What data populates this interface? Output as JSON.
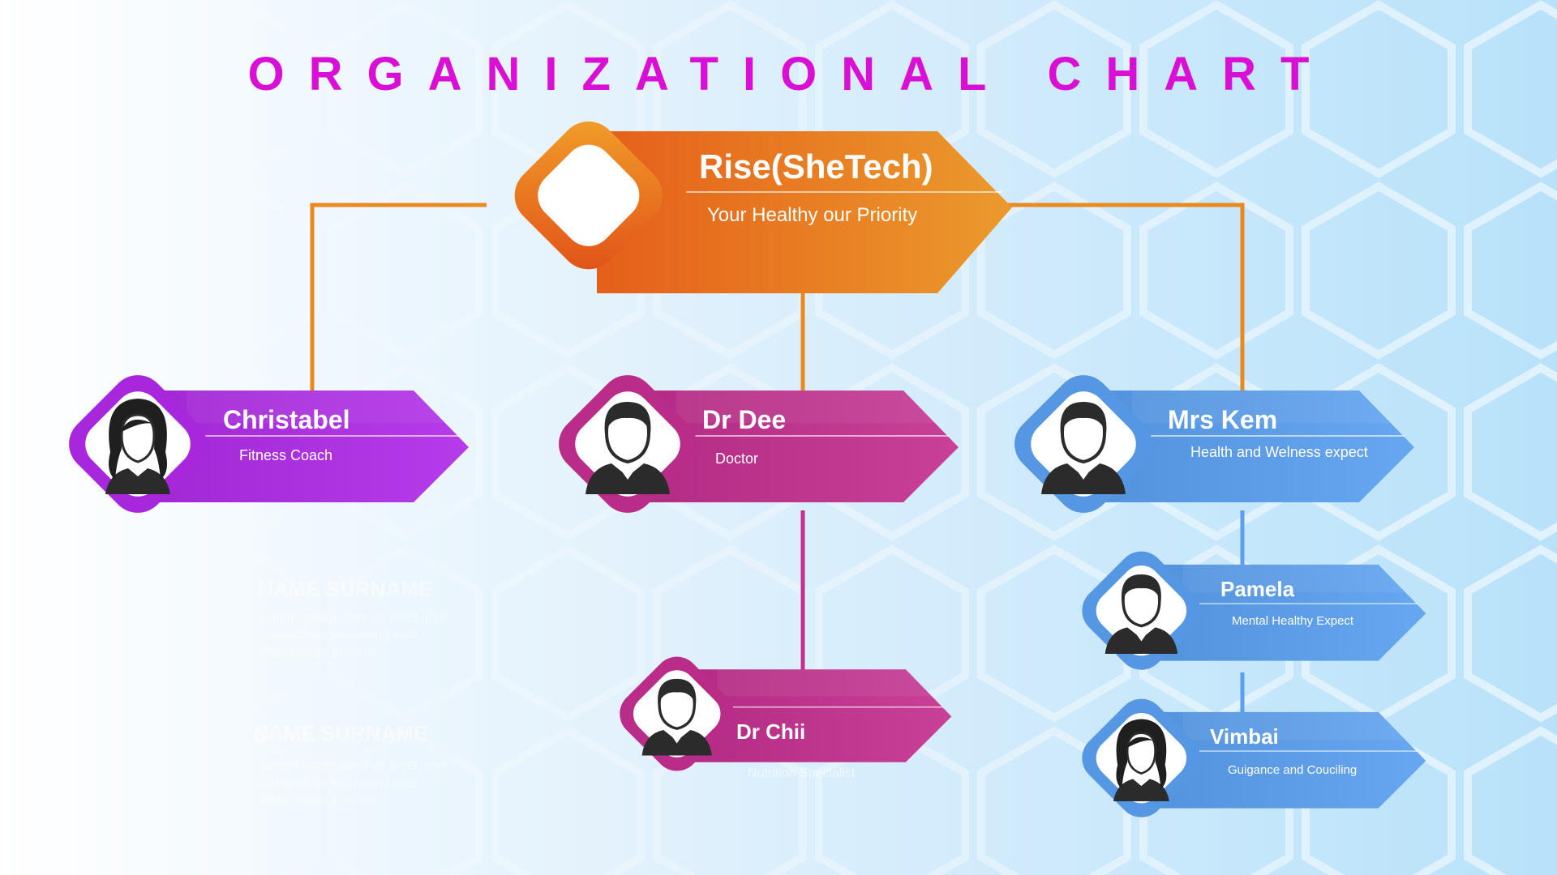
{
  "title": "ORGANIZATIONAL CHART",
  "root": {
    "name": "Rise(SheTech)",
    "tagline": "Your Healthy our Priority"
  },
  "members": [
    {
      "name": "Christabel",
      "role": "Fitness Coach",
      "avatar": "female-avatar-icon",
      "color": "#b02ae8"
    },
    {
      "name": "Dr Dee",
      "role": "Doctor",
      "avatar": "male-avatar-icon",
      "color": "#c32f8f"
    },
    {
      "name": "Mrs Kem",
      "role": "Health and Welness expect",
      "avatar": "male-avatar-icon",
      "color": "#5a9ff0"
    },
    {
      "name": "Pamela",
      "role": "Mental  Healthy Expect",
      "avatar": "male-avatar-icon",
      "color": "#5a9ff0"
    },
    {
      "name": "Dr Chii",
      "role": "Nutrition Specialist",
      "avatar": "male-avatar-icon",
      "color": "#c32f8f"
    },
    {
      "name": "Vimbai",
      "role": "Guigance and Couciling",
      "avatar": "female-avatar-icon",
      "color": "#5a9ff0"
    }
  ],
  "placeholders": [
    {
      "name": "NAME SURNAME",
      "text": "Lorem ipsum dolor sit amet, met consectetur adipiscing elite, ullamcorper pulvinar."
    },
    {
      "name": "NAME SURNAME",
      "text": "Lorem ipsum dolor sit amet, met consectetur adipiscing elite, ullamcorper pulvinar."
    }
  ],
  "colors": {
    "title": "#d90fd6",
    "root": "#ea8a1e",
    "purple": "#b02ae8",
    "magenta": "#c32f8f",
    "blue": "#5a9ff0"
  }
}
